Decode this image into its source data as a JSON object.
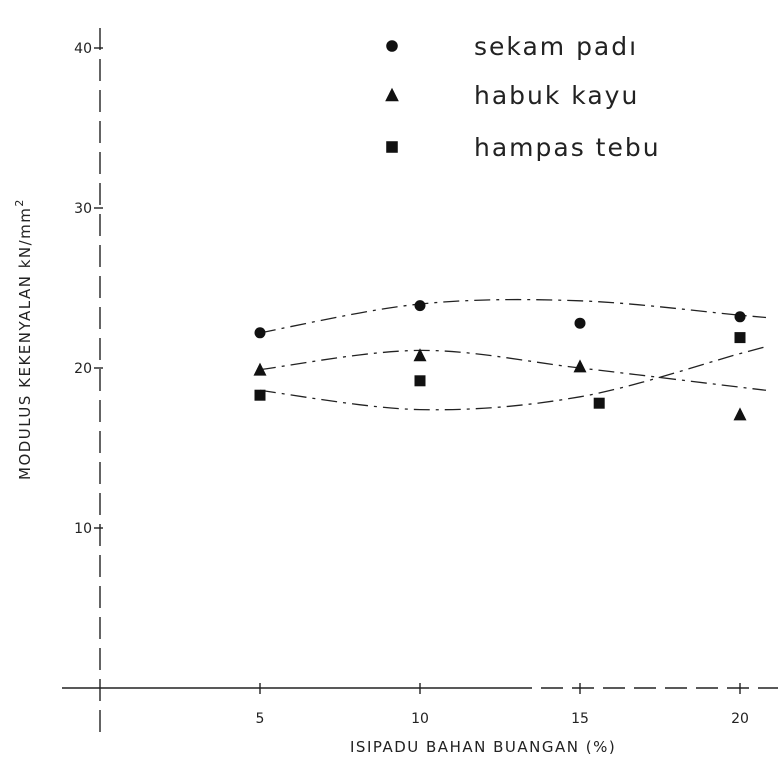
{
  "chart_data": {
    "type": "scatter",
    "xlabel": "ISIPADU BAHAN BUANGAN (%)",
    "ylabel": "MODULUS KEKENYALAN kN/mm",
    "ylabel_sup": "2",
    "x_ticks": [
      "5",
      "10",
      "15",
      "20"
    ],
    "x_tick_values": [
      5,
      10,
      15,
      20
    ],
    "y_ticks": [
      "10",
      "20",
      "30",
      "40"
    ],
    "y_tick_values": [
      10,
      20,
      30,
      40
    ],
    "xlim": [
      0,
      21
    ],
    "ylim": [
      0,
      42
    ],
    "grid": false,
    "legend_position": "top-right",
    "series": [
      {
        "name": "sekam padı",
        "marker": "circle",
        "x": [
          5,
          10,
          15,
          20
        ],
        "y": [
          22.2,
          23.9,
          22.8,
          23.2
        ],
        "fit": [
          22.2,
          24.0,
          24.2,
          23.3
        ]
      },
      {
        "name": "habuk kayu",
        "marker": "triangle",
        "x": [
          5,
          10,
          15,
          20
        ],
        "y": [
          19.9,
          20.8,
          20.1,
          17.1
        ],
        "fit": [
          19.9,
          21.1,
          20.0,
          18.8
        ]
      },
      {
        "name": "hampas tebu",
        "marker": "square",
        "x": [
          5,
          10,
          15,
          20
        ],
        "y": [
          18.3,
          19.2,
          17.8,
          21.9
        ],
        "fit": [
          18.6,
          17.4,
          18.2,
          20.9
        ]
      }
    ]
  }
}
